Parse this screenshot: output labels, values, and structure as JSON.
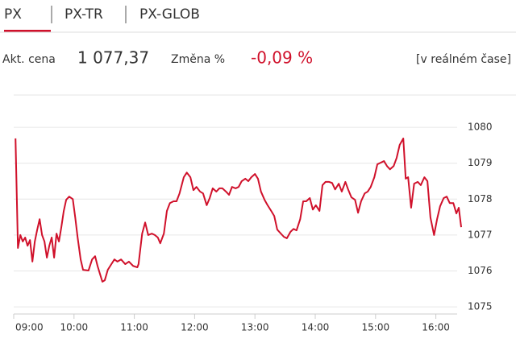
{
  "tabs": [
    "PX",
    "PX-TR",
    "PX-GLOB"
  ],
  "info": {
    "price_label": "Akt. cena",
    "price": "1 077,37",
    "change_label": "Změna %",
    "change": "-0,09 %",
    "realtime": "[v reálném čase]"
  },
  "chart_data": {
    "type": "line",
    "color": "#d0112b",
    "grid": true,
    "x": [
      9.03,
      9.07,
      9.11,
      9.15,
      9.19,
      9.23,
      9.27,
      9.31,
      9.35,
      9.39,
      9.43,
      9.47,
      9.51,
      9.55,
      9.59,
      9.63,
      9.67,
      9.71,
      9.75,
      9.79,
      9.83,
      9.87,
      9.92,
      9.98,
      10.02,
      10.06,
      10.11,
      10.15,
      10.24,
      10.3,
      10.35,
      10.39,
      10.43,
      10.47,
      10.51,
      10.56,
      10.62,
      10.67,
      10.72,
      10.78,
      10.85,
      10.91,
      10.98,
      11.05,
      11.07,
      11.13,
      11.18,
      11.23,
      11.29,
      11.34,
      11.39,
      11.43,
      11.49,
      11.54,
      11.59,
      11.65,
      11.7,
      11.75,
      11.82,
      11.87,
      11.93,
      11.98,
      12.03,
      12.09,
      12.14,
      12.2,
      12.25,
      12.3,
      12.36,
      12.41,
      12.46,
      12.52,
      12.57,
      12.62,
      12.68,
      12.73,
      12.78,
      12.84,
      12.89,
      12.94,
      13.0,
      13.05,
      13.1,
      13.16,
      13.21,
      13.27,
      13.32,
      13.37,
      13.43,
      13.48,
      13.53,
      13.59,
      13.64,
      13.69,
      13.75,
      13.8,
      13.85,
      13.91,
      13.96,
      14.01,
      14.07,
      14.12,
      14.17,
      14.23,
      14.28,
      14.33,
      14.39,
      14.44,
      14.5,
      14.55,
      14.6,
      14.66,
      14.71,
      14.76,
      14.82,
      14.87,
      14.92,
      14.98,
      15.03,
      15.08,
      15.14,
      15.19,
      15.24,
      15.3,
      15.35,
      15.4,
      15.46,
      15.5,
      15.54,
      15.59,
      15.64,
      15.7,
      15.75,
      15.81,
      15.86,
      15.91,
      15.97,
      16.02,
      16.07,
      16.13,
      16.18,
      16.23,
      16.29,
      16.34,
      16.38,
      16.42
    ],
    "values": [
      1079.69,
      1076.64,
      1077.0,
      1076.82,
      1076.93,
      1076.7,
      1076.86,
      1076.26,
      1076.82,
      1077.15,
      1077.44,
      1077.0,
      1076.82,
      1076.37,
      1076.7,
      1076.93,
      1076.37,
      1077.04,
      1076.82,
      1077.22,
      1077.67,
      1077.98,
      1078.07,
      1078.0,
      1077.49,
      1076.93,
      1076.32,
      1076.03,
      1076.01,
      1076.32,
      1076.41,
      1076.14,
      1075.92,
      1075.7,
      1075.74,
      1076.03,
      1076.19,
      1076.32,
      1076.26,
      1076.32,
      1076.19,
      1076.26,
      1076.14,
      1076.1,
      1076.19,
      1077.04,
      1077.35,
      1077.0,
      1077.04,
      1077.0,
      1076.93,
      1076.77,
      1077.04,
      1077.67,
      1077.89,
      1077.94,
      1077.94,
      1078.16,
      1078.61,
      1078.74,
      1078.61,
      1078.25,
      1078.34,
      1078.21,
      1078.16,
      1077.83,
      1078.03,
      1078.3,
      1078.21,
      1078.3,
      1078.3,
      1078.21,
      1078.12,
      1078.34,
      1078.3,
      1078.34,
      1078.5,
      1078.57,
      1078.5,
      1078.61,
      1078.7,
      1078.57,
      1078.21,
      1077.98,
      1077.83,
      1077.67,
      1077.53,
      1077.15,
      1077.04,
      1076.95,
      1076.91,
      1077.09,
      1077.17,
      1077.13,
      1077.44,
      1077.94,
      1077.94,
      1078.03,
      1077.71,
      1077.83,
      1077.67,
      1078.39,
      1078.48,
      1078.48,
      1078.45,
      1078.27,
      1078.43,
      1078.21,
      1078.48,
      1078.25,
      1078.05,
      1077.98,
      1077.62,
      1077.94,
      1078.16,
      1078.21,
      1078.34,
      1078.61,
      1078.97,
      1079.01,
      1079.06,
      1078.92,
      1078.83,
      1078.92,
      1079.15,
      1079.51,
      1079.69,
      1078.57,
      1078.61,
      1077.76,
      1078.43,
      1078.48,
      1078.39,
      1078.61,
      1078.5,
      1077.49,
      1077.0,
      1077.44,
      1077.8,
      1078.03,
      1078.07,
      1077.89,
      1077.89,
      1077.6,
      1077.76,
      1077.22
    ],
    "xlim": [
      9,
      16.5
    ],
    "xticks": [
      {
        "value": 9,
        "label": "09:00"
      },
      {
        "value": 10,
        "label": "10:00"
      },
      {
        "value": 11,
        "label": "11:00"
      },
      {
        "value": 12,
        "label": "12:00"
      },
      {
        "value": 13,
        "label": "13:00"
      },
      {
        "value": 14,
        "label": "14:00"
      },
      {
        "value": 15,
        "label": "15:00"
      },
      {
        "value": 16,
        "label": "16:00"
      }
    ],
    "ylim": [
      1074.8,
      1080.9
    ],
    "yticks": [
      1075,
      1076,
      1077,
      1078,
      1079,
      1080
    ]
  }
}
